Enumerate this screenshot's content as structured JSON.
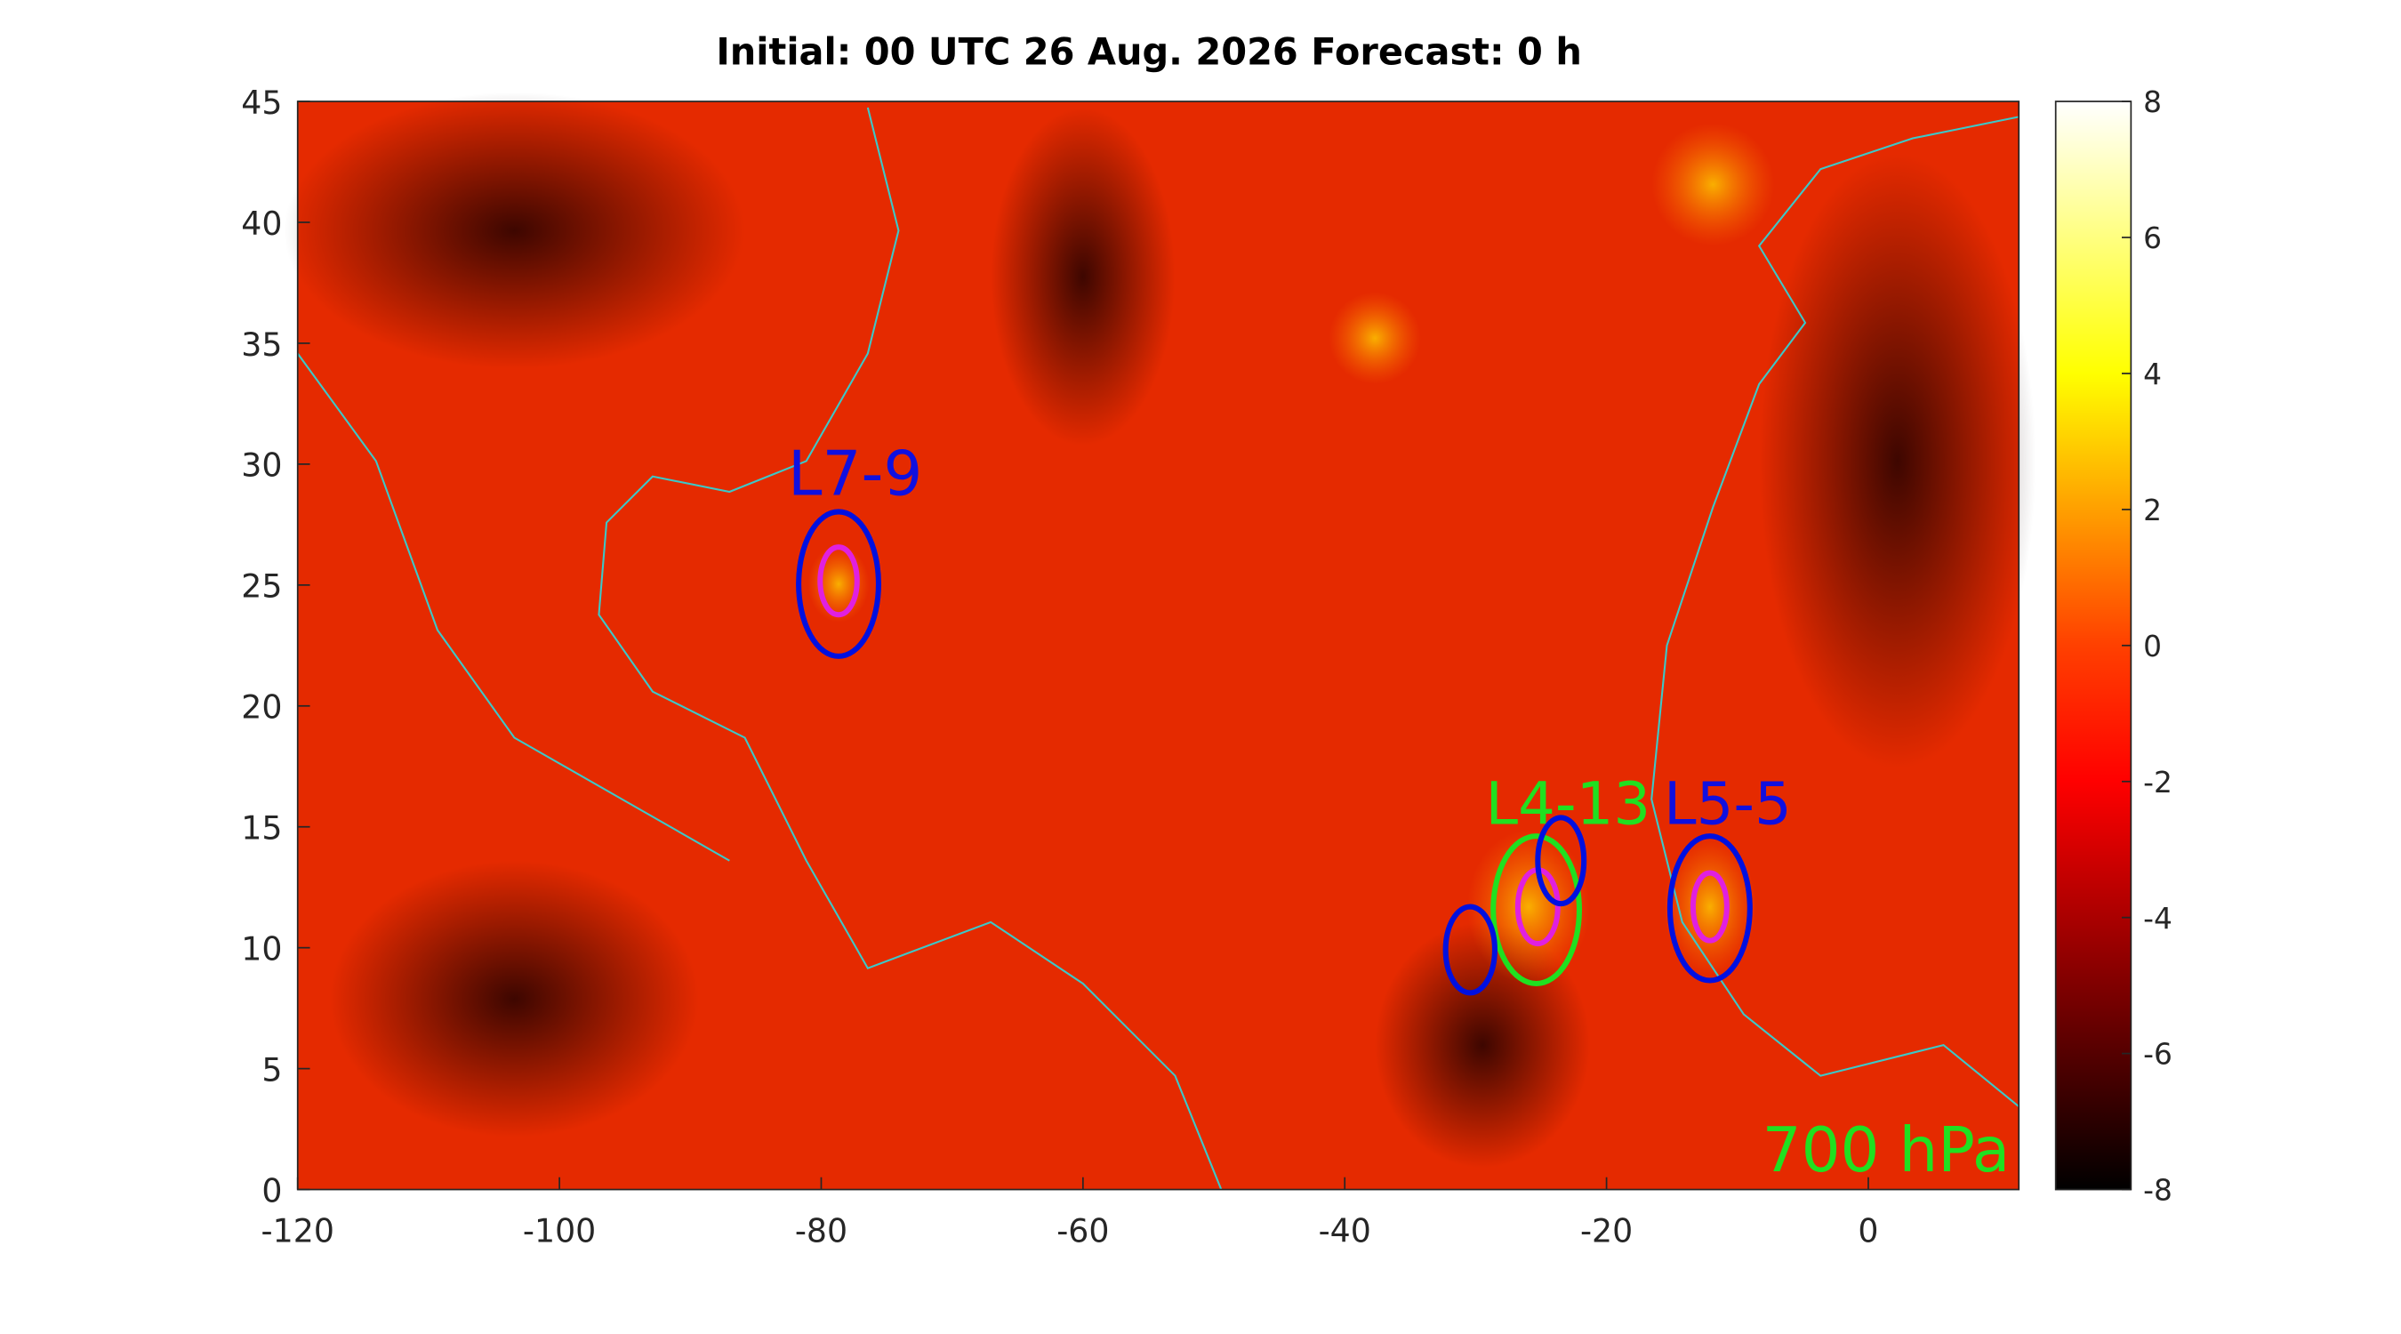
{
  "chart_data": {
    "type": "heatmap",
    "title": "Initial: 00 UTC 26 Aug. 2026 Forecast: 0 h",
    "xlim": [
      -120,
      11.5
    ],
    "xticks": [
      -120,
      -100,
      -80,
      -60,
      -40,
      -20,
      0
    ],
    "ylim": [
      0,
      45
    ],
    "yticks": [
      0,
      5,
      10,
      15,
      20,
      25,
      30,
      35,
      40,
      45
    ],
    "colorbar": {
      "lim": [
        -8,
        8
      ],
      "ticks": [
        -8,
        -6,
        -4,
        -2,
        0,
        2,
        4,
        6,
        8
      ]
    },
    "annotations": [
      "L7-9",
      "L4-13",
      "L5-5",
      "700 hPa"
    ]
  }
}
